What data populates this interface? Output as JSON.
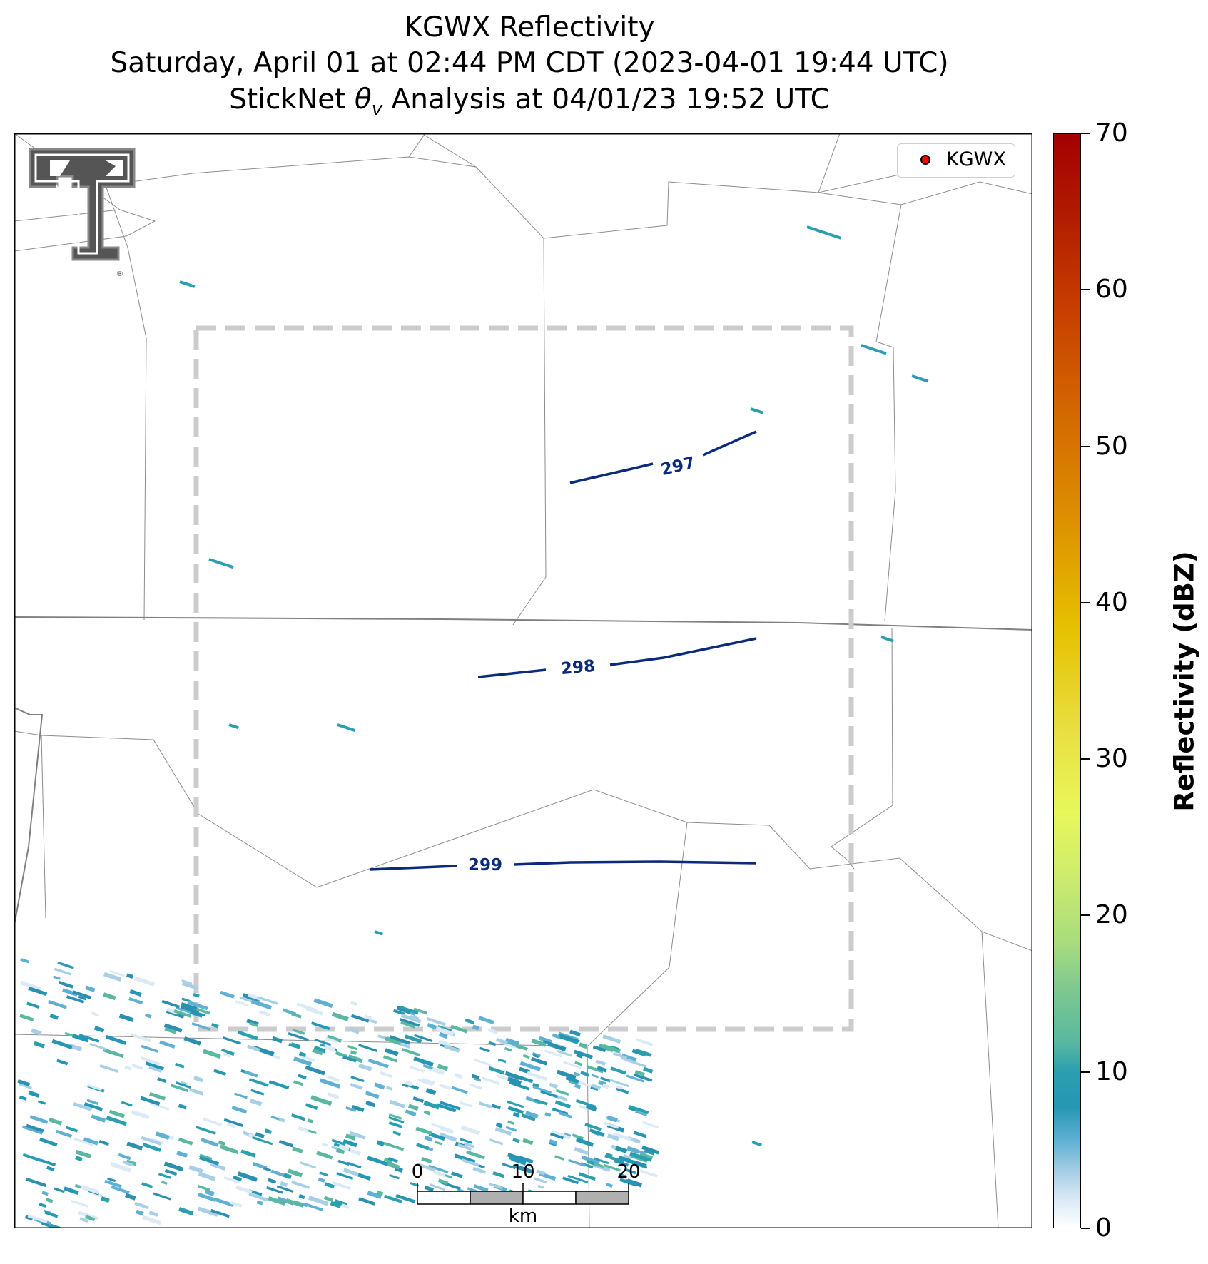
{
  "title": {
    "line1": "KGWX Reflectivity",
    "line2": "Saturday, April 01 at 02:44 PM CDT (2023-04-01 19:44 UTC)",
    "line3_prefix": "StickNet ",
    "line3_symbol": "θ",
    "line3_subscript": "v",
    "line3_suffix": " Analysis at 04/01/23 19:52 UTC"
  },
  "legend": {
    "label": "KGWX",
    "marker_color": "#ff0000"
  },
  "colorbar": {
    "label": "Reflectivity (dBZ)",
    "ticks": [
      "0",
      "10",
      "20",
      "30",
      "40",
      "50",
      "60",
      "70"
    ],
    "min": 0,
    "max": 70
  },
  "contours": [
    {
      "level": 297,
      "label": "297",
      "color": "#0a2a7a"
    },
    {
      "level": 298,
      "label": "298",
      "color": "#0a2a7a"
    },
    {
      "level": 299,
      "label": "299",
      "color": "#0a2a7a"
    }
  ],
  "scale_bar": {
    "ticks": [
      "0",
      "10",
      "20"
    ],
    "unit": "km"
  },
  "logo": {
    "name": "Texas Tech Double T",
    "registered_mark": "®"
  },
  "colors": {
    "analysis_box": "#cccccc",
    "county_lines": "#8c8c8c",
    "contour": "#0a2a7a"
  }
}
